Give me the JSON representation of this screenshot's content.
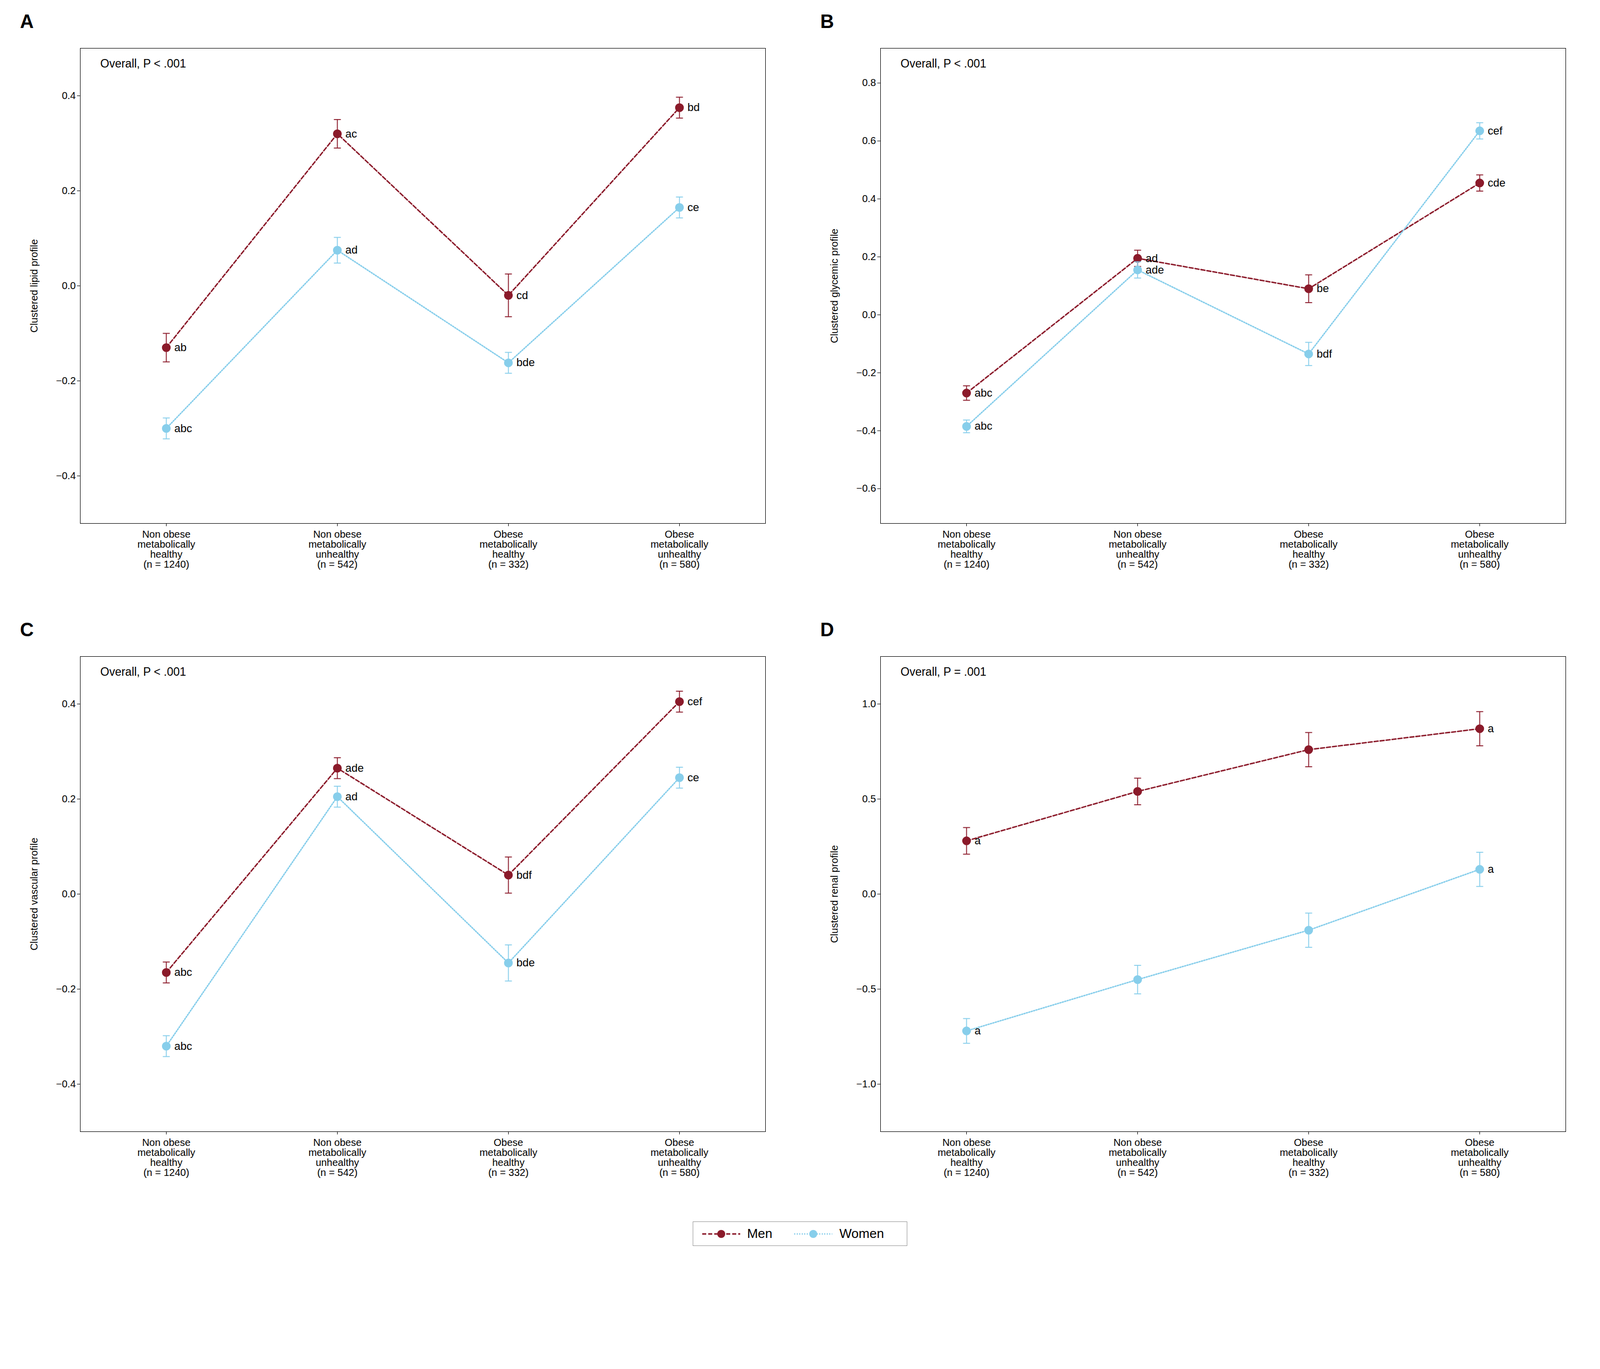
{
  "chart_data": [
    {
      "type": "line",
      "title": "A",
      "annotations": [
        "Overall, P < .001"
      ],
      "categories": [
        "Non obese\nmetabolically\nhealthy\n(n = 1240)",
        "Non obese\nmetabolically\nunhealthy\n(n = 542)",
        "Obese\nmetabolically\nhealthy\n(n = 332)",
        "Obese\nmetabolically\nunhealthy\n(n = 580)"
      ],
      "ylabel": "Clustered lipid profile",
      "ylim": [
        -0.5,
        0.5
      ],
      "yticks": [
        -0.4,
        -0.2,
        {
          "value": 0.0,
          "label": "0.0"
        },
        0.2,
        0.4
      ],
      "grid": false,
      "legend": "bottom",
      "series": [
        {
          "name": "Men",
          "color": "#8B1A2A",
          "line_style": "dashed",
          "marker": "circle",
          "values": [
            -0.13,
            0.32,
            -0.02,
            0.375
          ],
          "errors": [
            0.03,
            0.03,
            0.045,
            0.022
          ],
          "point_labels": [
            "ab",
            "ac",
            "cd",
            "bd"
          ]
        },
        {
          "name": "Women",
          "color": "#87CEEB",
          "line_style": "dotted",
          "marker": "circle",
          "values": [
            -0.3,
            0.075,
            -0.162,
            0.165
          ],
          "errors": [
            0.022,
            0.027,
            0.022,
            0.022
          ],
          "point_labels": [
            "abc",
            "ad",
            "bde",
            "ce"
          ]
        }
      ]
    },
    {
      "type": "line",
      "title": "B",
      "annotations": [
        "Overall, P < .001"
      ],
      "categories": [
        "Non obese\nmetabolically\nhealthy\n(n = 1240)",
        "Non obese\nmetabolically\nunhealthy\n(n = 542)",
        "Obese\nmetabolically\nhealthy\n(n = 332)",
        "Obese\nmetabolically\nunhealthy\n(n = 580)"
      ],
      "ylabel": "Clustered glycemic profile",
      "ylim": [
        -0.72,
        0.92
      ],
      "yticks": [
        -0.6,
        -0.4,
        -0.2,
        {
          "value": 0.0,
          "label": "0.0"
        },
        0.2,
        0.4,
        0.6,
        0.8
      ],
      "grid": false,
      "legend": "bottom",
      "series": [
        {
          "name": "Men",
          "color": "#8B1A2A",
          "line_style": "dashed",
          "marker": "circle",
          "values": [
            -0.27,
            0.195,
            0.09,
            0.455
          ],
          "errors": [
            0.025,
            0.028,
            0.048,
            0.028
          ],
          "point_labels": [
            "abc",
            "ad",
            "be",
            "cde"
          ]
        },
        {
          "name": "Women",
          "color": "#87CEEB",
          "line_style": "dotted",
          "marker": "circle",
          "values": [
            -0.385,
            0.155,
            -0.135,
            0.635
          ],
          "errors": [
            0.022,
            0.028,
            0.04,
            0.028
          ],
          "point_labels": [
            "abc",
            "ade",
            "bdf",
            "cef"
          ]
        }
      ]
    },
    {
      "type": "line",
      "title": "C",
      "annotations": [
        "Overall, P < .001"
      ],
      "categories": [
        "Non obese\nmetabolically\nhealthy\n(n = 1240)",
        "Non obese\nmetabolically\nunhealthy\n(n = 542)",
        "Obese\nmetabolically\nhealthy\n(n = 332)",
        "Obese\nmetabolically\nunhealthy\n(n = 580)"
      ],
      "ylabel": "Clustered vascular profile",
      "ylim": [
        -0.5,
        0.5
      ],
      "yticks": [
        -0.4,
        -0.2,
        {
          "value": 0.0,
          "label": "0.0"
        },
        0.2,
        0.4
      ],
      "grid": false,
      "legend": "bottom",
      "series": [
        {
          "name": "Men",
          "color": "#8B1A2A",
          "line_style": "dashed",
          "marker": "circle",
          "values": [
            -0.165,
            0.265,
            0.04,
            0.405
          ],
          "errors": [
            0.022,
            0.022,
            0.038,
            0.022
          ],
          "point_labels": [
            "abc",
            "ade",
            "bdf",
            "cef"
          ]
        },
        {
          "name": "Women",
          "color": "#87CEEB",
          "line_style": "dotted",
          "marker": "circle",
          "values": [
            -0.32,
            0.205,
            -0.145,
            0.245
          ],
          "errors": [
            0.022,
            0.022,
            0.038,
            0.022
          ],
          "point_labels": [
            "abc",
            "ad",
            "bde",
            "ce"
          ]
        }
      ]
    },
    {
      "type": "line",
      "title": "D",
      "annotations": [
        "Overall, P = .001"
      ],
      "categories": [
        "Non obese\nmetabolically\nhealthy\n(n = 1240)",
        "Non obese\nmetabolically\nunhealthy\n(n = 542)",
        "Obese\nmetabolically\nhealthy\n(n = 332)",
        "Obese\nmetabolically\nunhealthy\n(n = 580)"
      ],
      "ylabel": "Clustered renal profile",
      "ylim": [
        -1.25,
        1.25
      ],
      "yticks": [
        {
          "value": -1.0,
          "label": "−1.0"
        },
        -0.5,
        {
          "value": 0.0,
          "label": "0.0"
        },
        0.5,
        {
          "value": 1.0,
          "label": "1.0"
        }
      ],
      "grid": false,
      "legend": "bottom",
      "series": [
        {
          "name": "Men",
          "color": "#8B1A2A",
          "line_style": "dashed",
          "marker": "circle",
          "values": [
            0.28,
            0.54,
            0.76,
            0.87
          ],
          "errors": [
            0.07,
            0.07,
            0.09,
            0.09
          ],
          "point_labels": [
            "a",
            null,
            null,
            "a"
          ]
        },
        {
          "name": "Women",
          "color": "#87CEEB",
          "line_style": "dotted",
          "marker": "circle",
          "values": [
            -0.72,
            -0.45,
            -0.19,
            0.13
          ],
          "errors": [
            0.065,
            0.075,
            0.09,
            0.09
          ],
          "point_labels": [
            "a",
            null,
            null,
            "a"
          ]
        }
      ]
    }
  ]
}
